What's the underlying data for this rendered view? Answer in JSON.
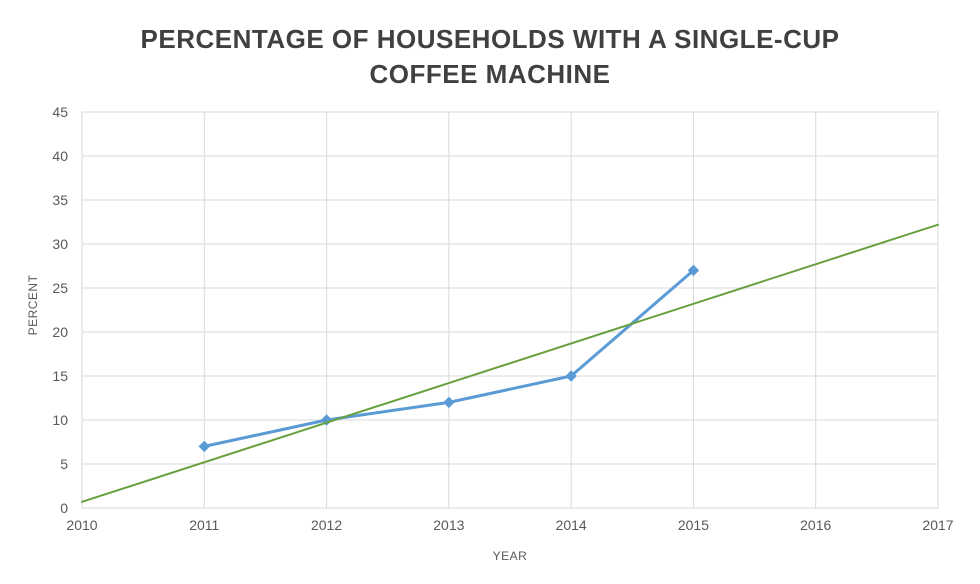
{
  "chart_data": {
    "type": "line",
    "title": "PERCENTAGE OF HOUSEHOLDS WITH A SINGLE-CUP COFFEE MACHINE",
    "xlabel": "YEAR",
    "ylabel": "PERCENT",
    "xlim": [
      2010,
      2017
    ],
    "ylim": [
      0,
      45
    ],
    "x_ticks": [
      2010,
      2011,
      2012,
      2013,
      2014,
      2015,
      2016,
      2017
    ],
    "y_ticks": [
      0,
      5,
      10,
      15,
      20,
      25,
      30,
      35,
      40,
      45
    ],
    "grid": true,
    "legend": "none",
    "series": [
      {
        "name": "percent-of-households",
        "type": "line",
        "color": "#5B9BD5",
        "marker": "diamond",
        "line_width": 3,
        "x": [
          2011,
          2012,
          2013,
          2014,
          2015
        ],
        "values": [
          7,
          10,
          12,
          15,
          27
        ]
      },
      {
        "name": "linear-trendline",
        "type": "trendline",
        "color": "#68A03F",
        "marker": "none",
        "line_width": 2,
        "x": [
          2010,
          2017
        ],
        "values": [
          0.7,
          32.2
        ]
      }
    ],
    "colors": {
      "gridline": "#D9D9D9",
      "plot_border": "#D9D9D9",
      "tick_text": "#595959",
      "title_text": "#404040",
      "background": "#FFFFFF"
    }
  }
}
